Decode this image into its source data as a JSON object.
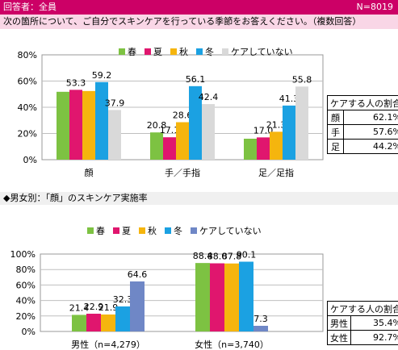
{
  "header": {
    "respondents": "回答者：全員",
    "n": "N=8019"
  },
  "question": "次の箇所について、ご自分でスキンケアを行っている季節をお答えください。（複数回答）",
  "section2_title": "◆男女別：「顔」のスキンケア実施率",
  "colors": {
    "spring": "#7dc242",
    "summer": "#e0166e",
    "autumn": "#f5b50e",
    "winter": "#1ba1e2",
    "none1": "#d9d9d9",
    "none2": "#6f87c6"
  },
  "chart_data": [
    {
      "type": "bar",
      "categories": [
        "顔",
        "手／手指",
        "足／足指"
      ],
      "series": [
        {
          "name": "春",
          "values": [
            51.8,
            20.8,
            16.0
          ]
        },
        {
          "name": "夏",
          "values": [
            53.3,
            17.1,
            17.0
          ]
        },
        {
          "name": "秋",
          "values": [
            52.4,
            28.6,
            21.3
          ]
        },
        {
          "name": "冬",
          "values": [
            59.2,
            56.1,
            41.3
          ]
        },
        {
          "name": "ケアしていない",
          "values": [
            37.9,
            42.4,
            55.8
          ]
        }
      ],
      "data_labels": [
        [
          "",
          "53.3",
          "",
          "59.2",
          "37.9"
        ],
        [
          "20.8",
          "17.1",
          "28.6",
          "56.1",
          "42.4"
        ],
        [
          "",
          "17.0",
          "21.3",
          "41.3",
          "55.8"
        ]
      ],
      "yticks": [
        "0%",
        "20%",
        "40%",
        "60%",
        "80%"
      ],
      "ylim": [
        0,
        80
      ],
      "grid": true,
      "legend": "top"
    },
    {
      "type": "bar",
      "categories": [
        "男性（n=4,279）",
        "女性（n=3,740）"
      ],
      "series": [
        {
          "name": "春",
          "values": [
            21.4,
            88.4
          ]
        },
        {
          "name": "夏",
          "values": [
            22.9,
            88.0
          ]
        },
        {
          "name": "秋",
          "values": [
            21.9,
            87.8
          ]
        },
        {
          "name": "冬",
          "values": [
            32.3,
            90.1
          ]
        },
        {
          "name": "ケアしていない",
          "values": [
            64.6,
            7.3
          ]
        }
      ],
      "data_labels": [
        [
          "21.4",
          "22.9",
          "21.9",
          "32.3",
          "64.6"
        ],
        [
          "88.4",
          "88.0",
          "87.8",
          "90.1",
          "7.3"
        ]
      ],
      "yticks": [
        "0%",
        "20%",
        "40%",
        "60%",
        "80%",
        "100%"
      ],
      "ylim": [
        0,
        100
      ],
      "grid": true,
      "legend": "top"
    }
  ],
  "table1": {
    "title": "ケアする人の割合",
    "rows": [
      [
        "顔",
        "62.1%"
      ],
      [
        "手",
        "57.6%"
      ],
      [
        "足",
        "44.2%"
      ]
    ]
  },
  "table2": {
    "title": "ケアする人の割合",
    "rows": [
      [
        "男性",
        "35.4%"
      ],
      [
        "女性",
        "92.7%"
      ]
    ]
  }
}
